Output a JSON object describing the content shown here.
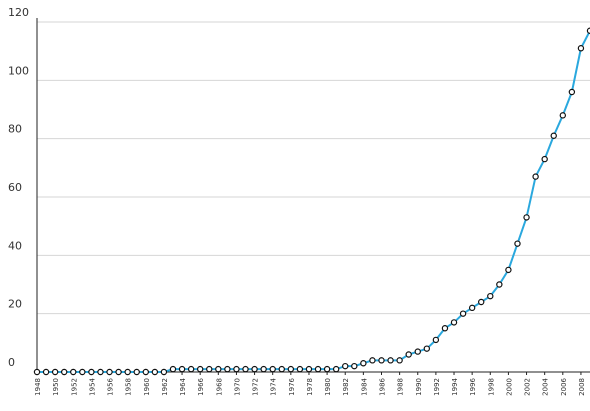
{
  "chart_data": {
    "type": "line",
    "title": "",
    "xlabel": "",
    "ylabel": "",
    "ylim": [
      0,
      120
    ],
    "yticks": [
      0,
      20,
      40,
      60,
      80,
      100,
      120
    ],
    "xlim": [
      1948,
      2009
    ],
    "xticks": [
      1948,
      1950,
      1952,
      1954,
      1956,
      1958,
      1960,
      1962,
      1964,
      1966,
      1968,
      1970,
      1972,
      1974,
      1976,
      1978,
      1980,
      1982,
      1984,
      1986,
      1988,
      1990,
      1992,
      1994,
      1996,
      1998,
      2000,
      2002,
      2004,
      2006,
      2008
    ],
    "grid": true,
    "legend": "none",
    "line_color": "#2aa8de",
    "marker_fill": "#ffffff",
    "marker_stroke": "#111111",
    "x": [
      1948,
      1949,
      1950,
      1951,
      1952,
      1953,
      1954,
      1955,
      1956,
      1957,
      1958,
      1959,
      1960,
      1961,
      1962,
      1963,
      1964,
      1965,
      1966,
      1967,
      1968,
      1969,
      1970,
      1971,
      1972,
      1973,
      1974,
      1975,
      1976,
      1977,
      1978,
      1979,
      1980,
      1981,
      1982,
      1983,
      1984,
      1985,
      1986,
      1987,
      1988,
      1989,
      1990,
      1991,
      1992,
      1993,
      1994,
      1995,
      1996,
      1997,
      1998,
      1999,
      2000,
      2001,
      2002,
      2003,
      2004,
      2005,
      2006,
      2007,
      2008,
      2009
    ],
    "series": [
      {
        "values": [
          0,
          0,
          0,
          0,
          0,
          0,
          0,
          0,
          0,
          0,
          0,
          0,
          0,
          0,
          0,
          1,
          1,
          1,
          1,
          1,
          1,
          1,
          1,
          1,
          1,
          1,
          1,
          1,
          1,
          1,
          1,
          1,
          1,
          1,
          2,
          2,
          3,
          4,
          4,
          4,
          4,
          6,
          7,
          8,
          11,
          15,
          17,
          20,
          22,
          24,
          26,
          30,
          35,
          44,
          53,
          67,
          73,
          81,
          88,
          96,
          111,
          117
        ]
      }
    ]
  }
}
